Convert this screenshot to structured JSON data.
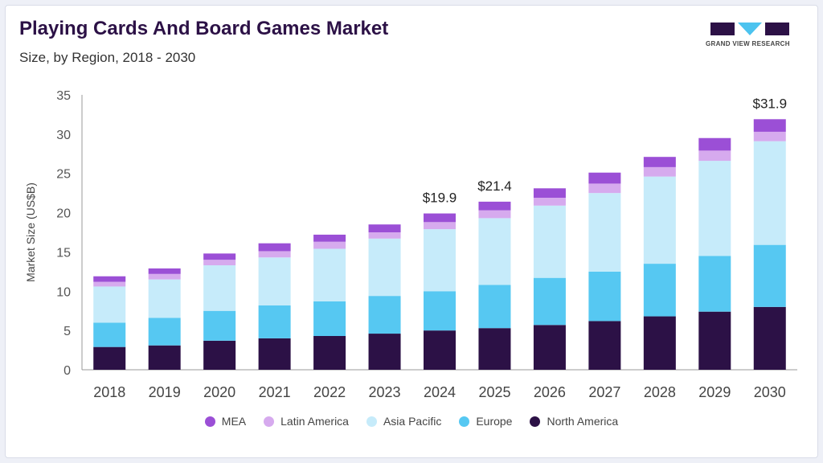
{
  "header": {
    "title": "Playing Cards And Board Games Market",
    "subtitle": "Size, by Region, 2018 - 2030",
    "logo_text": "GRAND VIEW RESEARCH"
  },
  "chart_data": {
    "type": "bar",
    "stacked": true,
    "title": "Playing Cards And Board Games Market",
    "subtitle": "Size, by Region, 2018 - 2030",
    "xlabel": "",
    "ylabel": "Market Size (US$B)",
    "ylim": [
      0,
      35
    ],
    "yticks": [
      "0",
      "5",
      "10",
      "15",
      "20",
      "25",
      "30",
      "35"
    ],
    "categories": [
      "2018",
      "2019",
      "2020",
      "2021",
      "2022",
      "2023",
      "2024",
      "2025",
      "2026",
      "2027",
      "2028",
      "2029",
      "2030"
    ],
    "series": [
      {
        "name": "North America",
        "color": "#2c1146",
        "values": [
          2.9,
          3.1,
          3.7,
          4.0,
          4.3,
          4.6,
          5.0,
          5.3,
          5.7,
          6.2,
          6.8,
          7.4,
          8.0
        ]
      },
      {
        "name": "Europe",
        "color": "#56c8f2",
        "values": [
          3.1,
          3.5,
          3.8,
          4.2,
          4.4,
          4.8,
          5.0,
          5.5,
          6.0,
          6.3,
          6.7,
          7.1,
          7.9
        ]
      },
      {
        "name": "Asia Pacific",
        "color": "#c6ebfa",
        "values": [
          4.6,
          4.9,
          5.8,
          6.1,
          6.7,
          7.3,
          7.9,
          8.5,
          9.2,
          10.0,
          11.1,
          12.1,
          13.2
        ]
      },
      {
        "name": "Latin America",
        "color": "#d6aaee",
        "values": [
          0.6,
          0.7,
          0.7,
          0.8,
          0.9,
          0.8,
          0.9,
          1.0,
          1.0,
          1.2,
          1.2,
          1.3,
          1.2
        ]
      },
      {
        "name": "MEA",
        "color": "#9b4fd6",
        "values": [
          0.7,
          0.7,
          0.8,
          1.0,
          0.9,
          1.0,
          1.1,
          1.1,
          1.2,
          1.4,
          1.3,
          1.6,
          1.6
        ]
      }
    ],
    "annotations": [
      {
        "category": "2024",
        "label": "$19.9"
      },
      {
        "category": "2025",
        "label": "$21.4"
      },
      {
        "category": "2030",
        "label": "$31.9"
      }
    ],
    "legend_placement": "bottom",
    "legend_order": [
      "MEA",
      "Latin America",
      "Asia Pacific",
      "Europe",
      "North America"
    ],
    "grid": false
  }
}
